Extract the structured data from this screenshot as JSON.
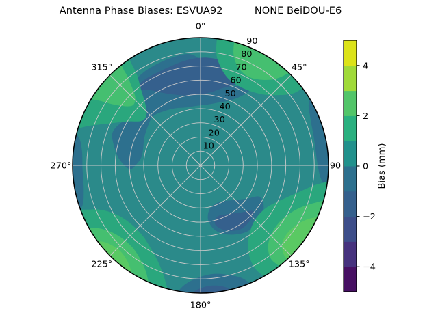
{
  "figure": {
    "title": "Antenna Phase Biases: ESVUA92          NONE BeiDOU-E6"
  },
  "chart_data": {
    "type": "polar_contour",
    "title": "Antenna Phase Biases: ESVUA92          NONE BeiDOU-E6",
    "station": "ESVUA92",
    "signal": "NONE BeiDOU-E6",
    "background_color": "#2b8a8a",
    "background_bias_mm": 0.5,
    "grid_color": "#c9c9c9",
    "outline_color": "#000000",
    "angular_ticks": [
      {
        "label": "0°",
        "az": 0
      },
      {
        "label": "45°",
        "az": 45
      },
      {
        "label": "90",
        "az": 90
      },
      {
        "label": "135°",
        "az": 135
      },
      {
        "label": "180°",
        "az": 180
      },
      {
        "label": "225°",
        "az": 225
      },
      {
        "label": "270°",
        "az": 270
      },
      {
        "label": "315°",
        "az": 315
      }
    ],
    "radial_ticks": [
      10,
      20,
      30,
      40,
      50,
      60,
      70,
      80,
      90
    ],
    "radial_tick_angle_deg": 22.5,
    "radial_max": 90,
    "colorbar": {
      "title": "Bias (mm)",
      "range": [
        -5,
        5
      ],
      "tick_values": [
        4,
        2,
        0,
        -2,
        -4
      ],
      "tick_labels": [
        "4",
        "2",
        "0",
        "−2",
        "−4"
      ],
      "band_colors_low_to_high": [
        "#471063",
        "#46327e",
        "#3d4e8a",
        "#35608d",
        "#2d708e",
        "#21918c",
        "#2ab07f",
        "#52c569",
        "#a0da39",
        "#dce319"
      ]
    },
    "regions": [
      {
        "name": "upper-blue-band-outer",
        "bias_mm": -0.5,
        "color": "#2d708e",
        "points": [
          [
            267,
            50
          ],
          [
            274,
            57
          ],
          [
            282,
            62
          ],
          [
            290,
            66
          ],
          [
            297,
            64
          ],
          [
            303,
            60
          ],
          [
            308,
            58
          ],
          [
            313,
            62
          ],
          [
            317,
            70
          ],
          [
            322,
            75
          ],
          [
            330,
            77
          ],
          [
            340,
            78
          ],
          [
            350,
            79
          ],
          [
            356,
            78
          ],
          [
            2,
            72
          ],
          [
            8,
            66
          ],
          [
            14,
            62
          ],
          [
            20,
            60
          ],
          [
            26,
            62
          ],
          [
            31,
            64
          ],
          [
            33,
            62
          ],
          [
            30,
            56
          ],
          [
            24,
            50
          ],
          [
            16,
            46
          ],
          [
            6,
            43
          ],
          [
            356,
            42
          ],
          [
            346,
            42
          ],
          [
            336,
            44
          ],
          [
            326,
            46
          ],
          [
            316,
            48
          ],
          [
            306,
            46
          ],
          [
            296,
            44
          ],
          [
            286,
            42
          ],
          [
            278,
            42
          ],
          [
            271,
            45
          ]
        ]
      },
      {
        "name": "upper-blue-band-core",
        "bias_mm": -1.5,
        "color": "#35608d",
        "points": [
          [
            320,
            70
          ],
          [
            326,
            64
          ],
          [
            332,
            58
          ],
          [
            340,
            53
          ],
          [
            350,
            50
          ],
          [
            0,
            50
          ],
          [
            8,
            52
          ],
          [
            15,
            56
          ],
          [
            21,
            60
          ],
          [
            25,
            64
          ],
          [
            27,
            68
          ],
          [
            22,
            73
          ],
          [
            14,
            75
          ],
          [
            4,
            76
          ],
          [
            354,
            75
          ],
          [
            344,
            73
          ],
          [
            334,
            72
          ],
          [
            326,
            72
          ]
        ]
      },
      {
        "name": "right-rim-blue",
        "bias_mm": -0.5,
        "color": "#2d708e",
        "points": [
          [
            58,
            96
          ],
          [
            60,
            88
          ],
          [
            67,
            84
          ],
          [
            77,
            82
          ],
          [
            88,
            82
          ],
          [
            96,
            85
          ],
          [
            100,
            90
          ],
          [
            101,
            96
          ],
          [
            88,
            97
          ],
          [
            72,
            97
          ]
        ]
      },
      {
        "name": "left-rim-blue",
        "bias_mm": -0.5,
        "color": "#2d708e",
        "points": [
          [
            249,
            96
          ],
          [
            251,
            88
          ],
          [
            258,
            84
          ],
          [
            268,
            83
          ],
          [
            277,
            84
          ],
          [
            283,
            88
          ],
          [
            285,
            96
          ],
          [
            271,
            97
          ],
          [
            259,
            97
          ]
        ]
      },
      {
        "name": "bottom-rim-blue-outer",
        "bias_mm": -0.5,
        "color": "#2d708e",
        "points": [
          [
            157,
            96
          ],
          [
            159,
            86
          ],
          [
            165,
            80
          ],
          [
            173,
            77
          ],
          [
            181,
            79
          ],
          [
            187,
            84
          ],
          [
            190,
            90
          ],
          [
            191,
            96
          ],
          [
            180,
            97
          ],
          [
            167,
            97
          ]
        ]
      },
      {
        "name": "bottom-rim-blue-core",
        "bias_mm": -1.5,
        "color": "#35608d",
        "points": [
          [
            165,
            96
          ],
          [
            168,
            88
          ],
          [
            175,
            85
          ],
          [
            182,
            88
          ],
          [
            185,
            93
          ],
          [
            186,
            96
          ],
          [
            176,
            97
          ]
        ]
      },
      {
        "name": "south-inner-blue-outer",
        "bias_mm": -0.5,
        "color": "#2d708e",
        "points": [
          [
            118,
            47
          ],
          [
            126,
            40
          ],
          [
            136,
            34
          ],
          [
            147,
            30
          ],
          [
            159,
            29
          ],
          [
            169,
            32
          ],
          [
            172,
            39
          ],
          [
            167,
            47
          ],
          [
            157,
            53
          ],
          [
            145,
            57
          ],
          [
            133,
            57
          ],
          [
            123,
            53
          ]
        ]
      },
      {
        "name": "south-inner-blue-core",
        "bias_mm": -1.5,
        "color": "#35608d",
        "points": [
          [
            131,
            49
          ],
          [
            141,
            43
          ],
          [
            152,
            39
          ],
          [
            162,
            38
          ],
          [
            166,
            43
          ],
          [
            159,
            49
          ],
          [
            148,
            53
          ],
          [
            137,
            52
          ]
        ]
      },
      {
        "name": "ne-green-halo",
        "bias_mm": 1.5,
        "color": "#2aa77d",
        "points": [
          [
            8,
            96
          ],
          [
            8,
            80
          ],
          [
            12,
            70
          ],
          [
            18,
            64
          ],
          [
            26,
            62
          ],
          [
            34,
            63
          ],
          [
            42,
            67
          ],
          [
            48,
            74
          ],
          [
            52,
            82
          ],
          [
            53,
            90
          ],
          [
            54,
            96
          ],
          [
            40,
            97
          ],
          [
            24,
            97
          ],
          [
            14,
            97
          ]
        ]
      },
      {
        "name": "ne-green-core",
        "bias_mm": 2.5,
        "color": "#45bf70",
        "points": [
          [
            16,
            96
          ],
          [
            16,
            84
          ],
          [
            20,
            75
          ],
          [
            27,
            71
          ],
          [
            34,
            73
          ],
          [
            40,
            79
          ],
          [
            43,
            87
          ],
          [
            44,
            96
          ],
          [
            34,
            97
          ],
          [
            24,
            97
          ]
        ]
      },
      {
        "name": "nw-green-halo",
        "bias_mm": 1.5,
        "color": "#2aa77d",
        "points": [
          [
            286,
            96
          ],
          [
            290,
            82
          ],
          [
            295,
            70
          ],
          [
            301,
            60
          ],
          [
            307,
            52
          ],
          [
            313,
            52
          ],
          [
            318,
            58
          ],
          [
            322,
            68
          ],
          [
            325,
            78
          ],
          [
            326,
            88
          ],
          [
            327,
            96
          ],
          [
            310,
            97
          ],
          [
            297,
            97
          ]
        ]
      },
      {
        "name": "nw-green-core",
        "bias_mm": 2.5,
        "color": "#45bf70",
        "points": [
          [
            301,
            96
          ],
          [
            303,
            83
          ],
          [
            306,
            72
          ],
          [
            311,
            64
          ],
          [
            316,
            66
          ],
          [
            319,
            74
          ],
          [
            321,
            84
          ],
          [
            321,
            96
          ],
          [
            310,
            97
          ]
        ]
      },
      {
        "name": "sw-green-halo",
        "bias_mm": 1.5,
        "color": "#2aa77d",
        "points": [
          [
            194,
            96
          ],
          [
            197,
            85
          ],
          [
            203,
            75
          ],
          [
            211,
            68
          ],
          [
            220,
            64
          ],
          [
            230,
            64
          ],
          [
            239,
            68
          ],
          [
            245,
            75
          ],
          [
            248,
            83
          ],
          [
            249,
            96
          ],
          [
            234,
            97
          ],
          [
            214,
            97
          ],
          [
            202,
            97
          ]
        ]
      },
      {
        "name": "sw-green-core",
        "bias_mm": 2.5,
        "color": "#45bf70",
        "points": [
          [
            203,
            96
          ],
          [
            206,
            86
          ],
          [
            212,
            79
          ],
          [
            220,
            75
          ],
          [
            229,
            76
          ],
          [
            236,
            81
          ],
          [
            240,
            88
          ],
          [
            241,
            96
          ],
          [
            228,
            97
          ],
          [
            213,
            97
          ]
        ]
      },
      {
        "name": "sw-green-bright",
        "bias_mm": 3.0,
        "color": "#5ac963",
        "points": [
          [
            211,
            96
          ],
          [
            214,
            88
          ],
          [
            221,
            83
          ],
          [
            228,
            84
          ],
          [
            233,
            89
          ],
          [
            234,
            96
          ],
          [
            224,
            97
          ]
        ]
      },
      {
        "name": "se-green-halo",
        "bias_mm": 1.5,
        "color": "#2aa77d",
        "points": [
          [
            97,
            96
          ],
          [
            99,
            84
          ],
          [
            105,
            72
          ],
          [
            113,
            62
          ],
          [
            123,
            55
          ],
          [
            134,
            54
          ],
          [
            143,
            58
          ],
          [
            149,
            65
          ],
          [
            152,
            74
          ],
          [
            152,
            83
          ],
          [
            150,
            91
          ],
          [
            149,
            96
          ],
          [
            132,
            97
          ],
          [
            112,
            97
          ],
          [
            103,
            97
          ]
        ]
      },
      {
        "name": "se-green-core",
        "bias_mm": 2.5,
        "color": "#45bf70",
        "points": [
          [
            105,
            96
          ],
          [
            108,
            85
          ],
          [
            114,
            75
          ],
          [
            123,
            69
          ],
          [
            133,
            69
          ],
          [
            140,
            74
          ],
          [
            143,
            82
          ],
          [
            142,
            90
          ],
          [
            141,
            96
          ],
          [
            126,
            97
          ],
          [
            113,
            97
          ]
        ]
      },
      {
        "name": "se-green-bright",
        "bias_mm": 3.0,
        "color": "#5ac963",
        "points": [
          [
            113,
            94
          ],
          [
            117,
            84
          ],
          [
            125,
            78
          ],
          [
            133,
            79
          ],
          [
            137,
            86
          ],
          [
            136,
            93
          ],
          [
            126,
            95
          ],
          [
            118,
            96
          ]
        ]
      }
    ]
  }
}
